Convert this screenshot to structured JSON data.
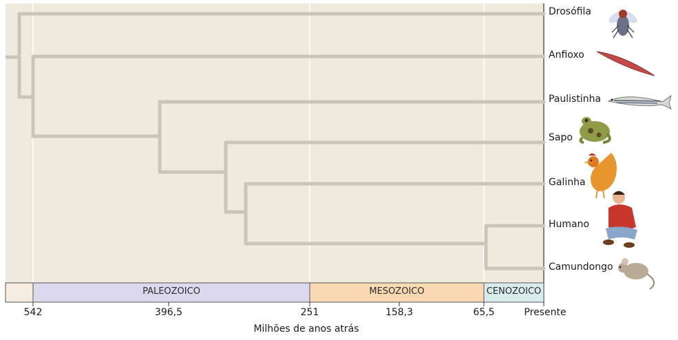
{
  "taxa": [
    {
      "key": "drosofila",
      "label": "Drosófila",
      "icon": "fly-icon"
    },
    {
      "key": "anfioxo",
      "label": "Anfioxo",
      "icon": "lancelet-icon"
    },
    {
      "key": "paulistinha",
      "label": "Paulistinha",
      "icon": "zebrafish-icon"
    },
    {
      "key": "sapo",
      "label": "Sapo",
      "icon": "frog-icon"
    },
    {
      "key": "galinha",
      "label": "Galinha",
      "icon": "rooster-icon"
    },
    {
      "key": "humano",
      "label": "Humano",
      "icon": "human-icon"
    },
    {
      "key": "camundongo",
      "label": "Camundongo",
      "icon": "mouse-icon"
    }
  ],
  "eras": [
    {
      "label": "",
      "color": "#f6ece0"
    },
    {
      "label": "PALEOZOICO",
      "color": "#dcd9ee"
    },
    {
      "label": "MESOZOICO",
      "color": "#f9d8b2"
    },
    {
      "label": "CENOZOICO",
      "color": "#d9ecec"
    }
  ],
  "axis": {
    "ticks": [
      "542",
      "396,5",
      "251",
      "158,3",
      "65,5",
      "Presente"
    ],
    "title": "Milhões de anos atrás"
  },
  "colors": {
    "plot_background": "#eeebde",
    "branch": "#c9c6b9",
    "boundary_line": "#ffffff"
  }
}
